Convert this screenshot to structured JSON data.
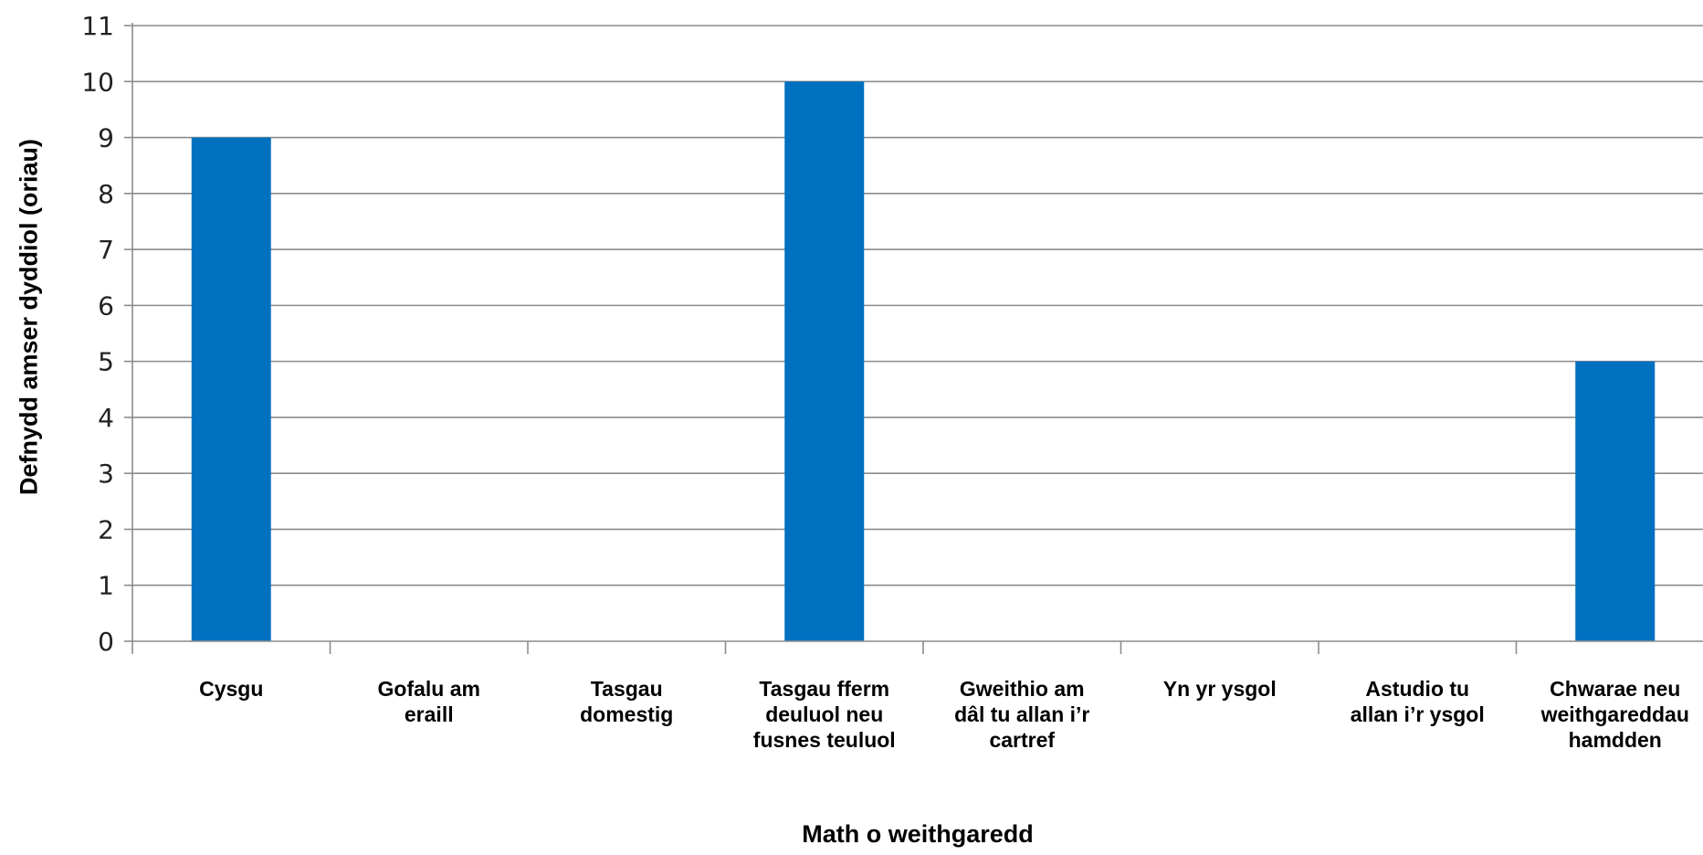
{
  "chart_data": {
    "type": "bar",
    "categories": [
      "Cysgu",
      "Gofalu am\neraill",
      "Tasgau\ndomestig",
      "Tasgau fferm\ndeuluol neu\nfusnes teuluol",
      "Gweithio am\ndâl tu allan i’r\ncartref",
      "Yn yr ysgol",
      "Astudio tu\nallan i’r ysgol",
      "Chwarae neu\nweithgareddau\nhamdden"
    ],
    "values": [
      9,
      0,
      0,
      10,
      0,
      0,
      0,
      5
    ],
    "xlabel": "Math o weithgaredd",
    "ylabel": "Defnydd amser dyddiol (oriau)",
    "ylim": [
      0,
      11
    ],
    "yticks": [
      "0",
      "1",
      "2",
      "3",
      "4",
      "5",
      "6",
      "7",
      "8",
      "9",
      "10",
      "11"
    ],
    "grid": true,
    "legend": "none",
    "colors": {
      "bar": "#0070C0",
      "grid": "#8c8c8c",
      "axis": "#8c8c8c"
    }
  }
}
